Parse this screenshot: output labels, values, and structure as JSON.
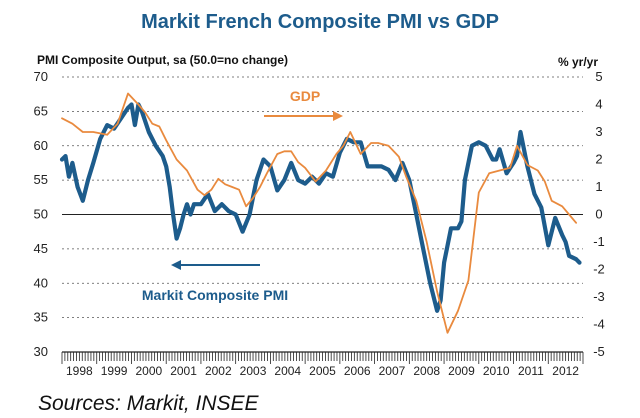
{
  "chart_data": {
    "type": "line",
    "title": "Markit French Composite PMI vs GDP",
    "ylabel": "PMI Composite Output, sa (50.0=no change)",
    "y2label": "% yr/yr",
    "ylim": [
      30,
      70
    ],
    "y2lim": [
      -5,
      5
    ],
    "yticks": [
      30,
      35,
      40,
      45,
      50,
      55,
      60,
      65,
      70
    ],
    "y2ticks": [
      -5,
      -4,
      -3,
      -2,
      -1,
      0,
      1,
      2,
      3,
      4,
      5
    ],
    "xlim": [
      1998,
      2013
    ],
    "xtick_labels": [
      "1998",
      "1999",
      "2000",
      "2001",
      "2002",
      "2003",
      "2004",
      "2005",
      "2006",
      "2007",
      "2008",
      "2009",
      "2010",
      "2011",
      "2012"
    ],
    "reference_line": 50,
    "grid": "horizontal dashed",
    "series": [
      {
        "name": "Markit Composite PMI",
        "axis": "left",
        "color": "#1d5c8c",
        "x": [
          1998.0,
          1998.1,
          1998.2,
          1998.3,
          1998.45,
          1998.6,
          1998.75,
          1998.9,
          1999.1,
          1999.3,
          1999.5,
          1999.7,
          1999.9,
          2000.0,
          2000.1,
          2000.2,
          2000.3,
          2000.5,
          2000.7,
          2000.9,
          2001.0,
          2001.1,
          2001.2,
          2001.3,
          2001.4,
          2001.5,
          2001.6,
          2001.7,
          2001.8,
          2002.0,
          2002.2,
          2002.4,
          2002.6,
          2002.8,
          2003.0,
          2003.2,
          2003.4,
          2003.5,
          2003.6,
          2003.8,
          2004.0,
          2004.2,
          2004.4,
          2004.6,
          2004.8,
          2005.0,
          2005.2,
          2005.4,
          2005.6,
          2005.8,
          2006.0,
          2006.2,
          2006.4,
          2006.6,
          2006.8,
          2007.0,
          2007.2,
          2007.4,
          2007.6,
          2007.8,
          2008.0,
          2008.2,
          2008.4,
          2008.6,
          2008.8,
          2008.9,
          2009.0,
          2009.2,
          2009.4,
          2009.5,
          2009.6,
          2009.8,
          2010.0,
          2010.2,
          2010.4,
          2010.5,
          2010.6,
          2010.8,
          2011.0,
          2011.1,
          2011.2,
          2011.4,
          2011.6,
          2011.8,
          2012.0,
          2012.2,
          2012.4,
          2012.5,
          2012.6,
          2012.8,
          2012.9
        ],
        "values": [
          58,
          58.5,
          55.5,
          57.5,
          54,
          52,
          55,
          57.5,
          61,
          63,
          62.5,
          64,
          65.5,
          66,
          63,
          66,
          65,
          62,
          60,
          58.5,
          57,
          54,
          50,
          46.5,
          48,
          50,
          51.5,
          50,
          51.5,
          51.5,
          53,
          50.5,
          51.5,
          50.5,
          50,
          47.5,
          50,
          52.5,
          55,
          58,
          57,
          53.5,
          55,
          57.5,
          55,
          54.5,
          55.5,
          54.5,
          56,
          55.5,
          59,
          61,
          60.5,
          60.5,
          57,
          57,
          57,
          56.5,
          55,
          57.5,
          55,
          50,
          45,
          40,
          36,
          37.5,
          43,
          48,
          48,
          49,
          55,
          60,
          60.5,
          60,
          58,
          58,
          59.5,
          56,
          57.5,
          58.5,
          62,
          57,
          53,
          51,
          45.5,
          49.5,
          47,
          46,
          44,
          43.5,
          43
        ]
      },
      {
        "name": "GDP",
        "axis": "right",
        "color": "#e98a3e",
        "x": [
          1998.0,
          1998.3,
          1998.6,
          1998.9,
          1999.3,
          1999.6,
          1999.9,
          2000.2,
          2000.4,
          2000.6,
          2000.8,
          2001.0,
          2001.3,
          2001.6,
          2001.9,
          2002.1,
          2002.3,
          2002.5,
          2002.7,
          2002.9,
          2003.1,
          2003.3,
          2003.5,
          2003.7,
          2003.9,
          2004.2,
          2004.4,
          2004.6,
          2004.8,
          2005.0,
          2005.3,
          2005.6,
          2005.9,
          2006.1,
          2006.3,
          2006.6,
          2006.9,
          2007.1,
          2007.4,
          2007.7,
          2007.9,
          2008.2,
          2008.5,
          2008.8,
          2009.1,
          2009.4,
          2009.7,
          2010.0,
          2010.3,
          2010.6,
          2010.9,
          2011.1,
          2011.4,
          2011.7,
          2011.9,
          2012.1,
          2012.4,
          2012.6,
          2012.8
        ],
        "values": [
          3.5,
          3.3,
          3.0,
          3.0,
          2.9,
          3.3,
          4.4,
          4.0,
          3.7,
          3.3,
          3.2,
          2.7,
          2.0,
          1.6,
          0.9,
          0.7,
          0.9,
          1.3,
          1.1,
          1.0,
          0.9,
          0.3,
          0.6,
          1.0,
          1.5,
          2.2,
          2.3,
          2.3,
          1.9,
          1.7,
          1.2,
          1.6,
          2.2,
          2.5,
          3.0,
          2.2,
          2.6,
          2.6,
          2.5,
          2.1,
          1.4,
          0.5,
          -1.0,
          -2.8,
          -4.3,
          -3.5,
          -2.4,
          0.8,
          1.5,
          1.6,
          1.7,
          2.5,
          1.8,
          1.6,
          1.2,
          0.5,
          0.3,
          0.0,
          -0.3
        ]
      }
    ],
    "annotations": [
      {
        "text": "GDP",
        "color": "#e98a3e",
        "arrow": "right"
      },
      {
        "text": "Markit Composite PMI",
        "color": "#1d5c8c",
        "arrow": "left"
      }
    ]
  },
  "source_text": "Sources: Markit, INSEE"
}
